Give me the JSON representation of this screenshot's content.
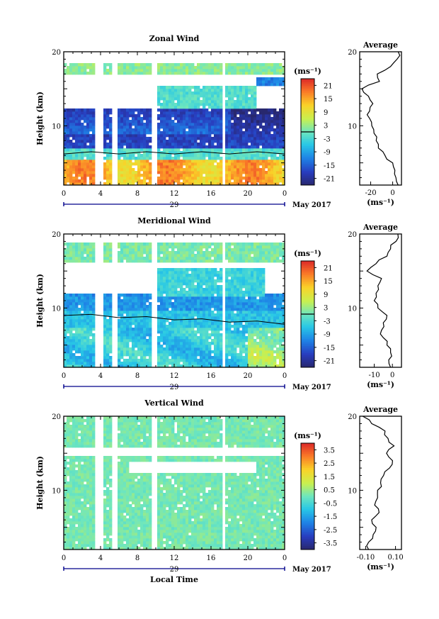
{
  "figure": {
    "date_label": "May 2017",
    "date_day": "29",
    "x_axis_label": "Local Time",
    "y_axis_label": "Height (km)",
    "average_title": "Average",
    "unit_label": "(ms⁻¹)"
  },
  "chart_data": [
    {
      "type": "heatmap",
      "title": "Zonal Wind",
      "xlabel": "",
      "ylabel": "Height (km)",
      "x_ticks": [
        "0",
        "4",
        "8",
        "12",
        "16",
        "20",
        "0"
      ],
      "xlim": [
        0,
        24
      ],
      "y_ticks": [
        "10",
        "20"
      ],
      "ylim": [
        2,
        20
      ],
      "colorbar": {
        "unit": "(ms⁻¹)",
        "ticks": [
          "21",
          "15",
          "9",
          "3",
          "-3",
          "-9",
          "-15",
          "-21"
        ],
        "range": [
          -24,
          24
        ]
      },
      "data_gaps_local_time": [
        [
          3.3,
          4.2
        ],
        [
          5.3,
          5.8
        ],
        [
          9.6,
          10.0
        ],
        [
          17.2,
          17.6
        ]
      ],
      "profile": {
        "title": "Average",
        "xlabel": "(ms⁻¹)",
        "x_ticks": [
          "-20",
          "0"
        ],
        "xlim": [
          -30,
          8
        ],
        "y_ticks": [
          "10",
          "20"
        ],
        "height_km": [
          2,
          3,
          4,
          5,
          6,
          7,
          8,
          9,
          10,
          11,
          12,
          13,
          14,
          15,
          16,
          17,
          18,
          19,
          20
        ],
        "value": [
          5,
          3,
          2,
          0,
          -7,
          -13,
          -15,
          -17,
          -19,
          -21,
          -21,
          -18,
          -22,
          -28,
          -12,
          -14,
          -2,
          4,
          5
        ]
      }
    },
    {
      "type": "heatmap",
      "title": "Meridional Wind",
      "xlabel": "",
      "ylabel": "Height (km)",
      "x_ticks": [
        "0",
        "4",
        "8",
        "12",
        "16",
        "20",
        "0"
      ],
      "xlim": [
        0,
        24
      ],
      "y_ticks": [
        "10",
        "20"
      ],
      "ylim": [
        2,
        20
      ],
      "colorbar": {
        "unit": "(ms⁻¹)",
        "ticks": [
          "21",
          "15",
          "9",
          "3",
          "-3",
          "-9",
          "-15",
          "-21"
        ],
        "range": [
          -24,
          24
        ]
      },
      "data_gaps_local_time": [
        [
          3.3,
          4.2
        ],
        [
          5.3,
          5.8
        ],
        [
          9.6,
          10.0
        ],
        [
          17.2,
          17.6
        ]
      ],
      "profile": {
        "title": "Average",
        "xlabel": "(ms⁻¹)",
        "x_ticks": [
          "-10",
          "0"
        ],
        "xlim": [
          -18,
          5
        ],
        "y_ticks": [
          "10",
          "20"
        ],
        "height_km": [
          2,
          3,
          4,
          5,
          6,
          7,
          8,
          9,
          10,
          11,
          12,
          13,
          14,
          15,
          16,
          17,
          18,
          19,
          20
        ],
        "value": [
          -1,
          -2,
          -1,
          -3,
          -5,
          -6,
          -5,
          -3,
          -8,
          -10,
          -9,
          -8,
          -6,
          -14,
          -9,
          -3,
          -1,
          2,
          3
        ]
      }
    },
    {
      "type": "heatmap",
      "title": "Vertical Wind",
      "xlabel": "Local Time",
      "ylabel": "Height (km)",
      "x_ticks": [
        "0",
        "4",
        "8",
        "12",
        "16",
        "20",
        "0"
      ],
      "xlim": [
        0,
        24
      ],
      "y_ticks": [
        "10",
        "20"
      ],
      "ylim": [
        2,
        20
      ],
      "colorbar": {
        "unit": "(ms⁻¹)",
        "ticks": [
          "3.5",
          "2.5",
          "1.5",
          "0.5",
          "-0.5",
          "-1.5",
          "-2.5",
          "-3.5"
        ],
        "range": [
          -4,
          4
        ]
      },
      "data_gaps_local_time": [
        [
          3.3,
          4.2
        ],
        [
          5.3,
          5.8
        ],
        [
          9.6,
          10.0
        ],
        [
          17.2,
          17.6
        ]
      ],
      "profile": {
        "title": "Average",
        "xlabel": "(ms⁻¹)",
        "x_ticks": [
          "-0.10",
          "0.10"
        ],
        "xlim": [
          -0.14,
          0.14
        ],
        "y_ticks": [
          "10",
          "20"
        ],
        "height_km": [
          2,
          3,
          4,
          5,
          6,
          7,
          8,
          9,
          10,
          11,
          12,
          13,
          14,
          15,
          16,
          17,
          18,
          19,
          20
        ],
        "value": [
          -0.08,
          -0.08,
          -0.05,
          -0.03,
          -0.06,
          -0.01,
          -0.04,
          -0.02,
          -0.02,
          0.0,
          0.02,
          0.06,
          0.08,
          0.04,
          0.09,
          0.05,
          0.03,
          -0.06,
          -0.12
        ]
      }
    }
  ]
}
